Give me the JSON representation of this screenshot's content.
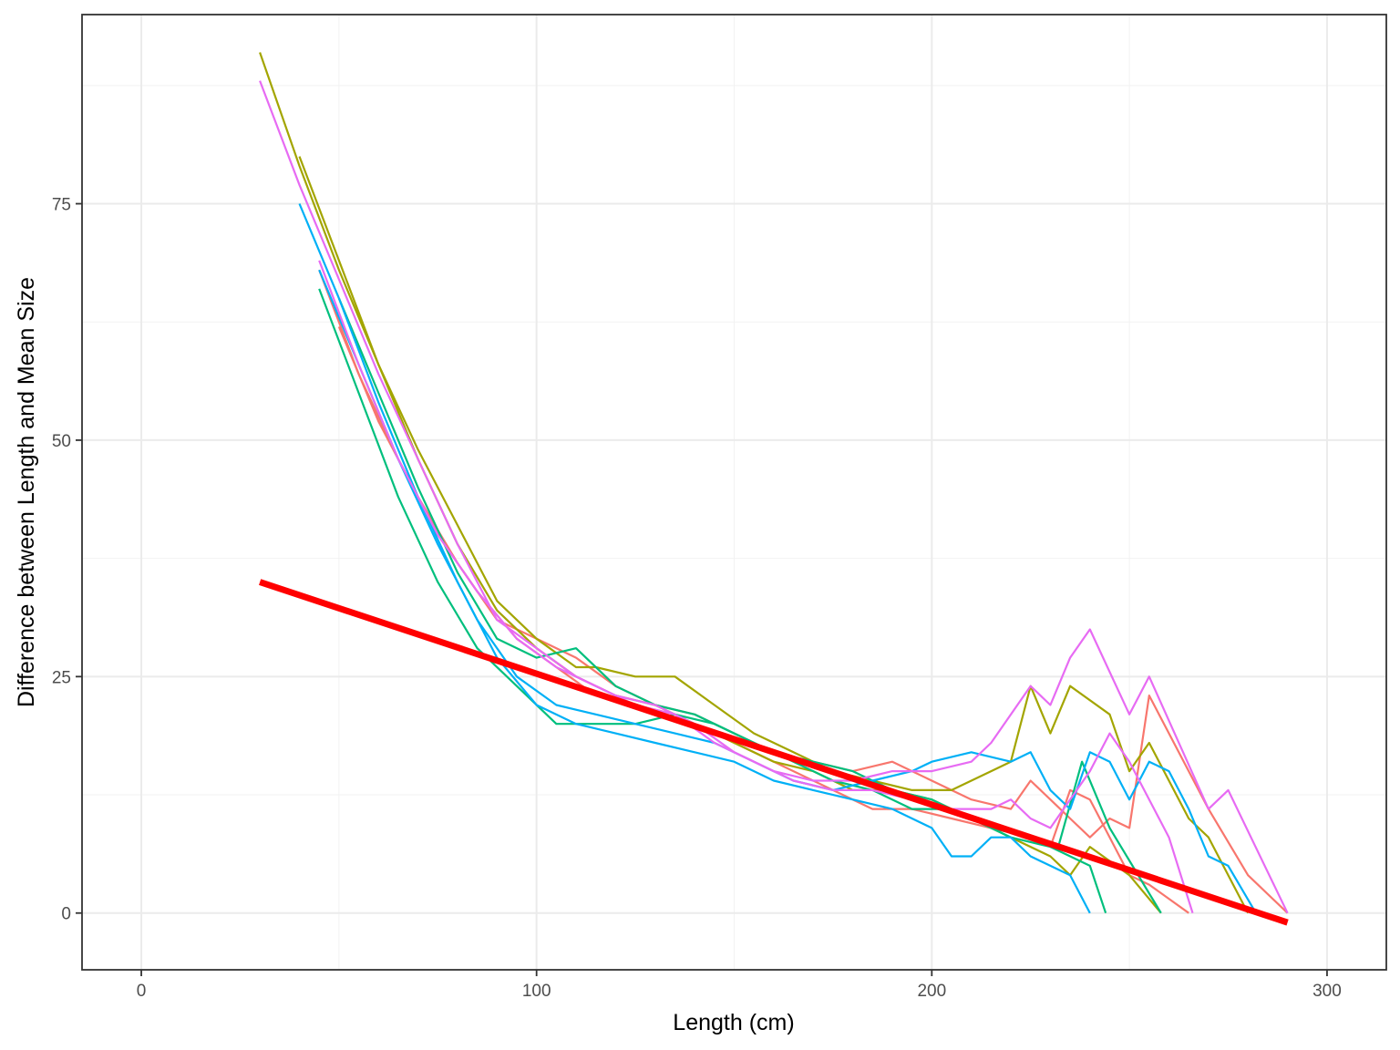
{
  "chart_data": {
    "type": "line",
    "title": "",
    "xlabel": "Length (cm)",
    "ylabel": "Difference between Length and Mean Size",
    "xlim": [
      -15,
      315
    ],
    "ylim": [
      -6,
      95
    ],
    "x_ticks": [
      0,
      100,
      200,
      300
    ],
    "y_ticks": [
      0,
      25,
      50,
      75
    ],
    "grid": true,
    "legend": "none",
    "series": [
      {
        "color": "#F8766D",
        "points": [
          [
            50,
            62
          ],
          [
            60,
            52
          ],
          [
            70,
            44
          ],
          [
            80,
            37
          ],
          [
            90,
            31
          ],
          [
            100,
            29
          ],
          [
            110,
            27
          ],
          [
            120,
            24
          ],
          [
            130,
            22
          ],
          [
            140,
            21
          ],
          [
            150,
            19
          ],
          [
            160,
            17
          ],
          [
            170,
            16
          ],
          [
            180,
            15
          ],
          [
            190,
            16
          ],
          [
            200,
            14
          ],
          [
            210,
            12
          ],
          [
            220,
            11
          ],
          [
            225,
            14
          ],
          [
            230,
            12
          ],
          [
            235,
            10
          ],
          [
            240,
            8
          ],
          [
            245,
            10
          ],
          [
            250,
            9
          ],
          [
            255,
            23
          ],
          [
            260,
            19
          ],
          [
            270,
            11
          ],
          [
            280,
            4
          ],
          [
            290,
            0
          ]
        ]
      },
      {
        "color": "#F8766D",
        "points": [
          [
            45,
            68
          ],
          [
            55,
            57
          ],
          [
            65,
            48
          ],
          [
            75,
            40
          ],
          [
            85,
            34
          ],
          [
            95,
            29
          ],
          [
            105,
            26
          ],
          [
            115,
            23
          ],
          [
            125,
            22
          ],
          [
            135,
            21
          ],
          [
            145,
            19
          ],
          [
            155,
            17
          ],
          [
            165,
            15
          ],
          [
            175,
            13
          ],
          [
            185,
            11
          ],
          [
            195,
            11
          ],
          [
            205,
            10
          ],
          [
            215,
            9
          ],
          [
            225,
            8
          ],
          [
            230,
            7
          ],
          [
            235,
            13
          ],
          [
            240,
            12
          ],
          [
            245,
            8
          ],
          [
            250,
            4
          ],
          [
            255,
            3
          ],
          [
            265,
            0
          ]
        ]
      },
      {
        "color": "#A3A500",
        "points": [
          [
            30,
            91
          ],
          [
            40,
            79
          ],
          [
            50,
            68
          ],
          [
            60,
            58
          ],
          [
            70,
            49
          ],
          [
            80,
            41
          ],
          [
            90,
            33
          ],
          [
            100,
            29
          ],
          [
            110,
            26
          ],
          [
            115,
            26
          ],
          [
            125,
            25
          ],
          [
            135,
            25
          ],
          [
            145,
            22
          ],
          [
            155,
            19
          ],
          [
            165,
            17
          ],
          [
            175,
            15
          ],
          [
            185,
            14
          ],
          [
            195,
            13
          ],
          [
            205,
            13
          ],
          [
            215,
            15
          ],
          [
            220,
            16
          ],
          [
            225,
            24
          ],
          [
            230,
            19
          ],
          [
            235,
            24
          ],
          [
            245,
            21
          ],
          [
            250,
            15
          ],
          [
            255,
            18
          ],
          [
            265,
            10
          ],
          [
            270,
            8
          ],
          [
            280,
            0
          ]
        ]
      },
      {
        "color": "#A3A500",
        "points": [
          [
            40,
            80
          ],
          [
            50,
            69
          ],
          [
            60,
            58
          ],
          [
            70,
            48
          ],
          [
            80,
            39
          ],
          [
            90,
            32
          ],
          [
            100,
            28
          ],
          [
            110,
            25
          ],
          [
            120,
            23
          ],
          [
            130,
            22
          ],
          [
            140,
            20
          ],
          [
            150,
            18
          ],
          [
            160,
            16
          ],
          [
            170,
            15
          ],
          [
            180,
            13
          ],
          [
            190,
            13
          ],
          [
            200,
            12
          ],
          [
            210,
            10
          ],
          [
            220,
            8
          ],
          [
            230,
            6
          ],
          [
            235,
            4
          ],
          [
            240,
            7
          ],
          [
            250,
            4
          ],
          [
            258,
            0
          ]
        ]
      },
      {
        "color": "#00BF7D",
        "points": [
          [
            50,
            65
          ],
          [
            60,
            55
          ],
          [
            70,
            45
          ],
          [
            80,
            36
          ],
          [
            90,
            29
          ],
          [
            100,
            27
          ],
          [
            110,
            28
          ],
          [
            120,
            24
          ],
          [
            130,
            22
          ],
          [
            140,
            21
          ],
          [
            150,
            19
          ],
          [
            160,
            17
          ],
          [
            170,
            16
          ],
          [
            180,
            15
          ],
          [
            190,
            13
          ],
          [
            200,
            12
          ],
          [
            210,
            10
          ],
          [
            220,
            8
          ],
          [
            230,
            7
          ],
          [
            235,
            6
          ],
          [
            240,
            5
          ],
          [
            244,
            0
          ]
        ]
      },
      {
        "color": "#00BF7D",
        "points": [
          [
            45,
            66
          ],
          [
            55,
            55
          ],
          [
            65,
            44
          ],
          [
            75,
            35
          ],
          [
            85,
            28
          ],
          [
            95,
            24
          ],
          [
            105,
            20
          ],
          [
            115,
            20
          ],
          [
            125,
            20
          ],
          [
            135,
            21
          ],
          [
            145,
            20
          ],
          [
            155,
            18
          ],
          [
            165,
            16
          ],
          [
            175,
            14
          ],
          [
            185,
            13
          ],
          [
            195,
            11
          ],
          [
            205,
            11
          ],
          [
            215,
            9
          ],
          [
            225,
            8
          ],
          [
            232,
            7
          ],
          [
            238,
            16
          ],
          [
            245,
            9
          ],
          [
            258,
            0
          ]
        ]
      },
      {
        "color": "#00B0F6",
        "points": [
          [
            40,
            75
          ],
          [
            50,
            65
          ],
          [
            60,
            54
          ],
          [
            70,
            44
          ],
          [
            80,
            35
          ],
          [
            90,
            27
          ],
          [
            100,
            22
          ],
          [
            110,
            20
          ],
          [
            120,
            19
          ],
          [
            130,
            18
          ],
          [
            140,
            17
          ],
          [
            150,
            16
          ],
          [
            160,
            14
          ],
          [
            170,
            13
          ],
          [
            180,
            12
          ],
          [
            190,
            11
          ],
          [
            200,
            9
          ],
          [
            205,
            6
          ],
          [
            210,
            6
          ],
          [
            215,
            8
          ],
          [
            220,
            8
          ],
          [
            225,
            6
          ],
          [
            230,
            5
          ],
          [
            235,
            4
          ],
          [
            240,
            0
          ]
        ]
      },
      {
        "color": "#00B0F6",
        "points": [
          [
            45,
            68
          ],
          [
            55,
            58
          ],
          [
            65,
            48
          ],
          [
            75,
            39
          ],
          [
            85,
            31
          ],
          [
            95,
            25
          ],
          [
            105,
            22
          ],
          [
            115,
            21
          ],
          [
            125,
            20
          ],
          [
            135,
            19
          ],
          [
            145,
            18
          ],
          [
            155,
            16
          ],
          [
            165,
            14
          ],
          [
            175,
            13
          ],
          [
            185,
            14
          ],
          [
            195,
            15
          ],
          [
            200,
            16
          ],
          [
            210,
            17
          ],
          [
            220,
            16
          ],
          [
            225,
            17
          ],
          [
            230,
            13
          ],
          [
            235,
            11
          ],
          [
            240,
            17
          ],
          [
            245,
            16
          ],
          [
            250,
            12
          ],
          [
            255,
            16
          ],
          [
            260,
            15
          ],
          [
            265,
            11
          ],
          [
            270,
            6
          ],
          [
            275,
            5
          ],
          [
            282,
            0
          ]
        ]
      },
      {
        "color": "#E76BF3",
        "points": [
          [
            30,
            88
          ],
          [
            40,
            77
          ],
          [
            50,
            67
          ],
          [
            60,
            57
          ],
          [
            70,
            48
          ],
          [
            80,
            39
          ],
          [
            90,
            31
          ],
          [
            100,
            28
          ],
          [
            110,
            25
          ],
          [
            120,
            23
          ],
          [
            130,
            22
          ],
          [
            140,
            20
          ],
          [
            150,
            17
          ],
          [
            160,
            15
          ],
          [
            170,
            14
          ],
          [
            180,
            14
          ],
          [
            190,
            15
          ],
          [
            200,
            15
          ],
          [
            210,
            16
          ],
          [
            215,
            18
          ],
          [
            225,
            24
          ],
          [
            230,
            22
          ],
          [
            235,
            27
          ],
          [
            240,
            30
          ],
          [
            250,
            21
          ],
          [
            255,
            25
          ],
          [
            270,
            11
          ],
          [
            275,
            13
          ],
          [
            290,
            0
          ]
        ]
      },
      {
        "color": "#E76BF3",
        "points": [
          [
            45,
            69
          ],
          [
            55,
            58
          ],
          [
            65,
            48
          ],
          [
            75,
            40
          ],
          [
            85,
            34
          ],
          [
            95,
            29
          ],
          [
            105,
            26
          ],
          [
            115,
            24
          ],
          [
            125,
            22
          ],
          [
            135,
            21
          ],
          [
            145,
            18
          ],
          [
            155,
            16
          ],
          [
            165,
            14
          ],
          [
            175,
            13
          ],
          [
            185,
            13
          ],
          [
            195,
            12
          ],
          [
            205,
            11
          ],
          [
            215,
            11
          ],
          [
            220,
            12
          ],
          [
            225,
            10
          ],
          [
            230,
            9
          ],
          [
            235,
            12
          ],
          [
            240,
            15
          ],
          [
            245,
            19
          ],
          [
            250,
            16
          ],
          [
            260,
            8
          ],
          [
            266,
            0
          ]
        ]
      }
    ],
    "fit": {
      "color": "#FF0000",
      "x": [
        30,
        290
      ],
      "y": [
        35,
        -1
      ]
    }
  }
}
